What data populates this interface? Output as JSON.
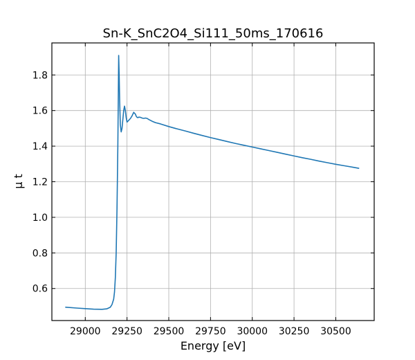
{
  "chart_data": {
    "type": "line",
    "title": "Sn-K_SnC2O4_Si111_50ms_170616",
    "xlabel": "Energy [eV]",
    "ylabel": "μ t",
    "xlim": [
      28800,
      30730
    ],
    "ylim": [
      0.42,
      1.98
    ],
    "xticks": [
      29000,
      29250,
      29500,
      29750,
      30000,
      30250,
      30500
    ],
    "yticks": [
      0.6,
      0.8,
      1.0,
      1.2,
      1.4,
      1.6,
      1.8
    ],
    "grid": true,
    "color": "#1f77b4",
    "series": [
      {
        "x": [
          28880,
          28950,
          29000,
          29050,
          29100,
          29130,
          29150,
          29160,
          29170,
          29175,
          29180,
          29185,
          29190,
          29195,
          29198,
          29200,
          29203,
          29206,
          29210,
          29215,
          29220,
          29225,
          29230,
          29235,
          29240,
          29245,
          29250,
          29255,
          29260,
          29270,
          29280,
          29290,
          29300,
          29305,
          29310,
          29315,
          29320,
          29330,
          29340,
          29350,
          29360,
          29370,
          29380,
          29400,
          29420,
          29450,
          29500,
          29550,
          29600,
          29650,
          29700,
          29750,
          29800,
          29850,
          29900,
          29950,
          30000,
          30050,
          30100,
          30150,
          30200,
          30250,
          30300,
          30350,
          30400,
          30450,
          30500,
          30550,
          30600,
          30640
        ],
        "y": [
          0.495,
          0.49,
          0.487,
          0.484,
          0.483,
          0.486,
          0.495,
          0.51,
          0.54,
          0.58,
          0.66,
          0.8,
          1.05,
          1.4,
          1.7,
          1.91,
          1.8,
          1.65,
          1.52,
          1.48,
          1.5,
          1.55,
          1.6,
          1.625,
          1.6,
          1.56,
          1.535,
          1.54,
          1.545,
          1.555,
          1.57,
          1.59,
          1.58,
          1.568,
          1.562,
          1.56,
          1.563,
          1.562,
          1.558,
          1.556,
          1.558,
          1.556,
          1.55,
          1.54,
          1.532,
          1.525,
          1.51,
          1.497,
          1.485,
          1.472,
          1.46,
          1.448,
          1.437,
          1.426,
          1.415,
          1.405,
          1.395,
          1.385,
          1.375,
          1.365,
          1.355,
          1.345,
          1.335,
          1.326,
          1.316,
          1.307,
          1.298,
          1.29,
          1.282,
          1.275
        ]
      }
    ]
  }
}
